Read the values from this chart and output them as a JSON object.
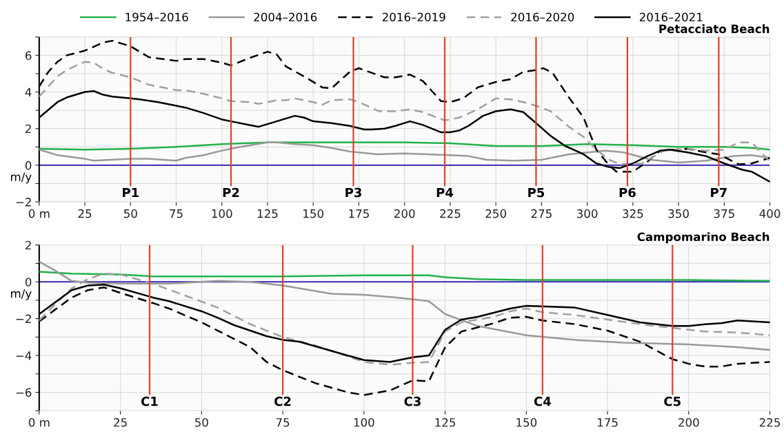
{
  "chart_data": [
    {
      "type": "line",
      "title": "Petacciato Beach",
      "ylabel": "m/y",
      "legend": "top",
      "grid": true,
      "xlim": [
        0,
        400
      ],
      "xticks": [
        {
          "value": 0,
          "label": "0 m"
        },
        25,
        50,
        75,
        100,
        125,
        150,
        175,
        200,
        225,
        250,
        275,
        300,
        325,
        350,
        375,
        400
      ],
      "ylim": [
        -2,
        7
      ],
      "yticks": [
        -2,
        {
          "value": -1,
          "label": null
        },
        0,
        {
          "value": 1,
          "label": null
        },
        2,
        {
          "value": 3,
          "label": null
        },
        4,
        {
          "value": 5,
          "label": null
        },
        6,
        {
          "value": 7,
          "label": null
        }
      ],
      "ref_lines": [
        {
          "axis": "y",
          "value": 0,
          "color": "#4b3fbf"
        },
        {
          "axis": "x",
          "value": 50,
          "label": "P1",
          "color": "#e0402a"
        },
        {
          "axis": "x",
          "value": 105,
          "label": "P2",
          "color": "#e0402a"
        },
        {
          "axis": "x",
          "value": 172,
          "label": "P3",
          "color": "#e0402a"
        },
        {
          "axis": "x",
          "value": 222,
          "label": "P4",
          "color": "#e0402a"
        },
        {
          "axis": "x",
          "value": 272,
          "label": "P5",
          "color": "#e0402a"
        },
        {
          "axis": "x",
          "value": 322,
          "label": "P6",
          "color": "#e0402a"
        },
        {
          "axis": "x",
          "value": 372,
          "label": "P7",
          "color": "#e0402a"
        }
      ],
      "series": [
        {
          "name": "1954–2016",
          "color": "#21b24b",
          "line_style": "solid",
          "x": [
            0,
            25,
            50,
            75,
            100,
            125,
            150,
            175,
            200,
            225,
            250,
            275,
            300,
            325,
            350,
            375,
            390,
            400
          ],
          "values": [
            0.9,
            0.85,
            0.9,
            1.0,
            1.15,
            1.25,
            1.25,
            1.25,
            1.25,
            1.2,
            1.05,
            1.05,
            1.15,
            1.1,
            1.0,
            1.0,
            0.95,
            0.85
          ]
        },
        {
          "name": "2004–2016",
          "color": "#999999",
          "line_style": "solid",
          "x": [
            0,
            10,
            25,
            30,
            50,
            60,
            75,
            80,
            90,
            100,
            110,
            125,
            130,
            140,
            150,
            160,
            170,
            185,
            200,
            225,
            235,
            245,
            260,
            275,
            290,
            310,
            320,
            335,
            350,
            365,
            380,
            390,
            400
          ],
          "values": [
            0.85,
            0.55,
            0.35,
            0.25,
            0.35,
            0.35,
            0.25,
            0.4,
            0.55,
            0.8,
            1.0,
            1.25,
            1.25,
            1.15,
            1.1,
            0.95,
            0.75,
            0.6,
            0.65,
            0.55,
            0.5,
            0.3,
            0.25,
            0.3,
            0.6,
            0.8,
            0.7,
            0.3,
            0.15,
            0.25,
            0.5,
            0.55,
            0.4
          ]
        },
        {
          "name": "2016–2019",
          "color": "#000000",
          "line_style": "dashed",
          "x": [
            0,
            5,
            10,
            15,
            25,
            35,
            40,
            45,
            50,
            60,
            75,
            80,
            90,
            100,
            105,
            115,
            125,
            130,
            135,
            145,
            155,
            160,
            170,
            175,
            189,
            195,
            203,
            210,
            220,
            225,
            232,
            240,
            250,
            258,
            265,
            272,
            276,
            281,
            290,
            298,
            305,
            312,
            316,
            325,
            333,
            340,
            355,
            365,
            372,
            383,
            390,
            400
          ],
          "values": [
            4.3,
            5.1,
            5.65,
            6.0,
            6.26,
            6.7,
            6.8,
            6.65,
            6.5,
            5.9,
            5.7,
            5.8,
            5.8,
            5.6,
            5.45,
            5.85,
            6.2,
            6.05,
            5.4,
            4.85,
            4.25,
            4.2,
            5.1,
            5.3,
            4.8,
            4.8,
            4.95,
            4.6,
            3.5,
            3.45,
            3.65,
            4.25,
            4.55,
            4.7,
            5.1,
            5.2,
            5.3,
            5.05,
            3.7,
            2.6,
            0.85,
            0.0,
            -0.35,
            -0.35,
            0.2,
            0.8,
            0.9,
            0.7,
            0.6,
            0.05,
            0.1,
            0.4
          ]
        },
        {
          "name": "2016–2020",
          "color": "#a0a0a0",
          "line_style": "dashed",
          "x": [
            0,
            10,
            15,
            25,
            30,
            35,
            40,
            50,
            60,
            75,
            80,
            90,
            100,
            105,
            115,
            120,
            130,
            135,
            140,
            150,
            155,
            160,
            170,
            175,
            186,
            195,
            203,
            210,
            222,
            230,
            240,
            250,
            258,
            265,
            272,
            280,
            290,
            298,
            305,
            312,
            318,
            330,
            342,
            355,
            365,
            375,
            383,
            390,
            400
          ],
          "values": [
            3.75,
            4.85,
            5.2,
            5.65,
            5.6,
            5.25,
            5.05,
            4.8,
            4.4,
            4.1,
            4.1,
            3.9,
            3.65,
            3.5,
            3.45,
            3.35,
            3.55,
            3.55,
            3.65,
            3.45,
            3.3,
            3.55,
            3.6,
            3.45,
            2.95,
            2.95,
            3.05,
            2.9,
            2.45,
            2.6,
            3.05,
            3.65,
            3.6,
            3.45,
            3.25,
            2.95,
            2.1,
            1.55,
            0.85,
            0.3,
            0.05,
            0.1,
            0.8,
            0.9,
            0.8,
            0.85,
            1.25,
            1.25,
            0.2
          ]
        },
        {
          "name": "2016–2021",
          "color": "#000000",
          "line_style": "solid",
          "x": [
            0,
            10,
            15,
            25,
            30,
            35,
            40,
            50,
            55,
            65,
            75,
            80,
            90,
            100,
            105,
            115,
            120,
            130,
            140,
            145,
            150,
            160,
            170,
            178,
            182,
            189,
            195,
            203,
            210,
            220,
            225,
            230,
            235,
            243,
            250,
            258,
            265,
            272,
            280,
            288,
            298,
            305,
            312,
            318,
            325,
            333,
            340,
            345,
            355,
            365,
            375,
            385,
            390,
            400
          ],
          "values": [
            2.6,
            3.45,
            3.7,
            4.0,
            4.05,
            3.85,
            3.75,
            3.65,
            3.6,
            3.45,
            3.25,
            3.15,
            2.85,
            2.5,
            2.4,
            2.2,
            2.1,
            2.4,
            2.7,
            2.6,
            2.4,
            2.3,
            2.15,
            1.95,
            1.95,
            2.0,
            2.15,
            2.4,
            2.2,
            1.8,
            1.8,
            1.9,
            2.15,
            2.7,
            2.95,
            3.05,
            2.9,
            2.3,
            1.6,
            1.05,
            0.6,
            0.1,
            -0.1,
            -0.15,
            0.1,
            0.5,
            0.8,
            0.85,
            0.7,
            0.5,
            0.1,
            -0.25,
            -0.35,
            -0.9
          ]
        }
      ]
    },
    {
      "type": "line",
      "title": "Campomarino Beach",
      "ylabel": "m/y",
      "grid": true,
      "xlim": [
        0,
        225
      ],
      "xticks": [
        {
          "value": 0,
          "label": "0 m"
        },
        25,
        50,
        75,
        100,
        125,
        150,
        175,
        200,
        225
      ],
      "ylim": [
        -7,
        2
      ],
      "yticks": [
        {
          "value": -7,
          "label": null
        },
        -6,
        {
          "value": -5,
          "label": null
        },
        -4,
        {
          "value": -3,
          "label": null
        },
        -2,
        {
          "value": -1,
          "label": null
        },
        0,
        {
          "value": 1,
          "label": null
        },
        2
      ],
      "ref_lines": [
        {
          "axis": "y",
          "value": 0,
          "color": "#4b3fbf"
        },
        {
          "axis": "x",
          "value": 34,
          "label": "C1",
          "color": "#e0402a"
        },
        {
          "axis": "x",
          "value": 75,
          "label": "C2",
          "color": "#e0402a"
        },
        {
          "axis": "x",
          "value": 115,
          "label": "C3",
          "color": "#e0402a"
        },
        {
          "axis": "x",
          "value": 155,
          "label": "C4",
          "color": "#e0402a"
        },
        {
          "axis": "x",
          "value": 195,
          "label": "C5",
          "color": "#e0402a"
        }
      ],
      "series": [
        {
          "color": "#21b24b",
          "line_style": "solid",
          "x": [
            0,
            10,
            25,
            35,
            50,
            75,
            100,
            115,
            120,
            125,
            135,
            150,
            175,
            200,
            225
          ],
          "values": [
            0.55,
            0.45,
            0.4,
            0.3,
            0.3,
            0.3,
            0.35,
            0.35,
            0.35,
            0.25,
            0.15,
            0.1,
            0.1,
            0.1,
            0.05
          ]
        },
        {
          "color": "#999999",
          "line_style": "solid",
          "x": [
            0,
            5,
            10,
            15,
            25,
            40,
            55,
            65,
            75,
            90,
            100,
            110,
            115,
            120,
            125,
            135,
            150,
            165,
            180,
            200,
            215,
            225
          ],
          "values": [
            1.1,
            0.6,
            0.05,
            -0.05,
            -0.1,
            -0.1,
            0.05,
            0.0,
            -0.2,
            -0.65,
            -0.7,
            -0.85,
            -0.95,
            -1.05,
            -1.75,
            -2.4,
            -2.9,
            -3.15,
            -3.3,
            -3.4,
            -3.55,
            -3.7
          ]
        },
        {
          "color": "#000000",
          "line_style": "dashed",
          "x": [
            0,
            10,
            15,
            20,
            25,
            35,
            40,
            50,
            55,
            65,
            70,
            75,
            85,
            95,
            100,
            108,
            115,
            120,
            125,
            130,
            140,
            145,
            150,
            155,
            165,
            175,
            185,
            195,
            200,
            205,
            210,
            215,
            225
          ],
          "values": [
            -2.15,
            -0.85,
            -0.45,
            -0.3,
            -0.6,
            -1.15,
            -1.45,
            -2.2,
            -2.65,
            -3.55,
            -4.35,
            -4.8,
            -5.5,
            -6.0,
            -6.15,
            -5.9,
            -5.35,
            -5.4,
            -3.55,
            -2.7,
            -2.25,
            -1.95,
            -1.9,
            -2.1,
            -2.3,
            -2.65,
            -3.25,
            -4.2,
            -4.45,
            -4.6,
            -4.6,
            -4.45,
            -4.35
          ]
        },
        {
          "color": "#a0a0a0",
          "line_style": "dashed",
          "x": [
            0,
            5,
            10,
            15,
            20,
            25,
            30,
            35,
            45,
            55,
            65,
            75,
            85,
            100,
            108,
            115,
            120,
            125,
            130,
            140,
            145,
            150,
            155,
            165,
            175,
            185,
            195,
            205,
            215,
            225
          ],
          "values": [
            -2.1,
            -1.2,
            -0.35,
            0.15,
            0.45,
            0.4,
            0.15,
            -0.1,
            -0.75,
            -1.4,
            -2.3,
            -3.0,
            -3.45,
            -4.35,
            -4.5,
            -4.4,
            -4.35,
            -2.7,
            -2.2,
            -1.9,
            -1.6,
            -1.45,
            -1.65,
            -1.8,
            -2.05,
            -2.3,
            -2.5,
            -2.7,
            -2.75,
            -2.9
          ]
        },
        {
          "color": "#000000",
          "line_style": "solid",
          "x": [
            0,
            10,
            15,
            20,
            25,
            35,
            40,
            50,
            55,
            60,
            70,
            75,
            80,
            90,
            100,
            108,
            115,
            120,
            125,
            130,
            135,
            145,
            150,
            165,
            175,
            185,
            195,
            200,
            205,
            210,
            215,
            225
          ],
          "values": [
            -1.75,
            -0.45,
            -0.2,
            -0.15,
            -0.35,
            -0.85,
            -1.05,
            -1.6,
            -1.95,
            -2.35,
            -2.95,
            -3.15,
            -3.25,
            -3.75,
            -4.25,
            -4.35,
            -4.1,
            -4.0,
            -2.6,
            -2.05,
            -1.9,
            -1.45,
            -1.3,
            -1.4,
            -1.8,
            -2.2,
            -2.4,
            -2.4,
            -2.3,
            -2.25,
            -2.1,
            -2.2
          ]
        }
      ]
    }
  ]
}
